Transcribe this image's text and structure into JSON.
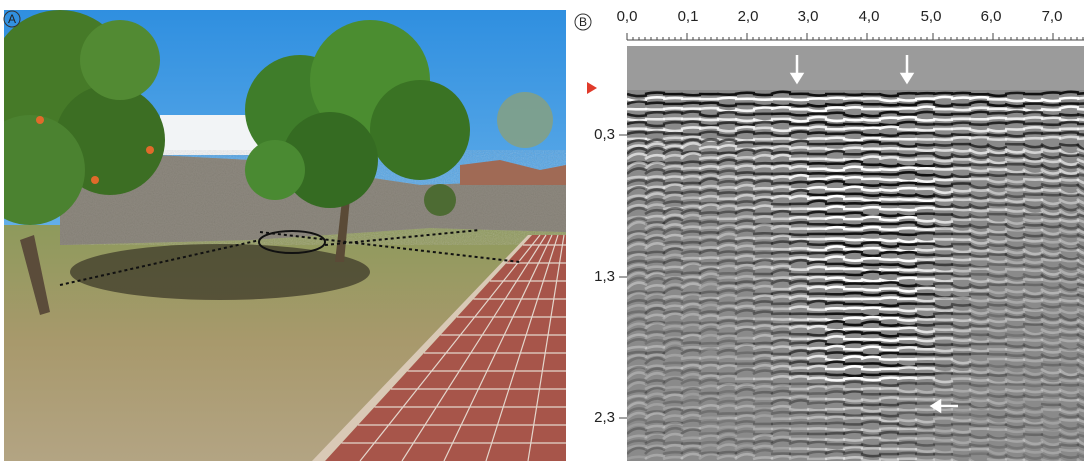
{
  "panels": {
    "a": {
      "label": "A"
    },
    "b": {
      "label": "B",
      "x_ticks": [
        "0,0",
        "0,1",
        "2,0",
        "3,0",
        "4,0",
        "5,0",
        "6,0",
        "7,0"
      ],
      "y_ticks": [
        "0,3",
        "1,3",
        "2,3"
      ]
    }
  }
}
